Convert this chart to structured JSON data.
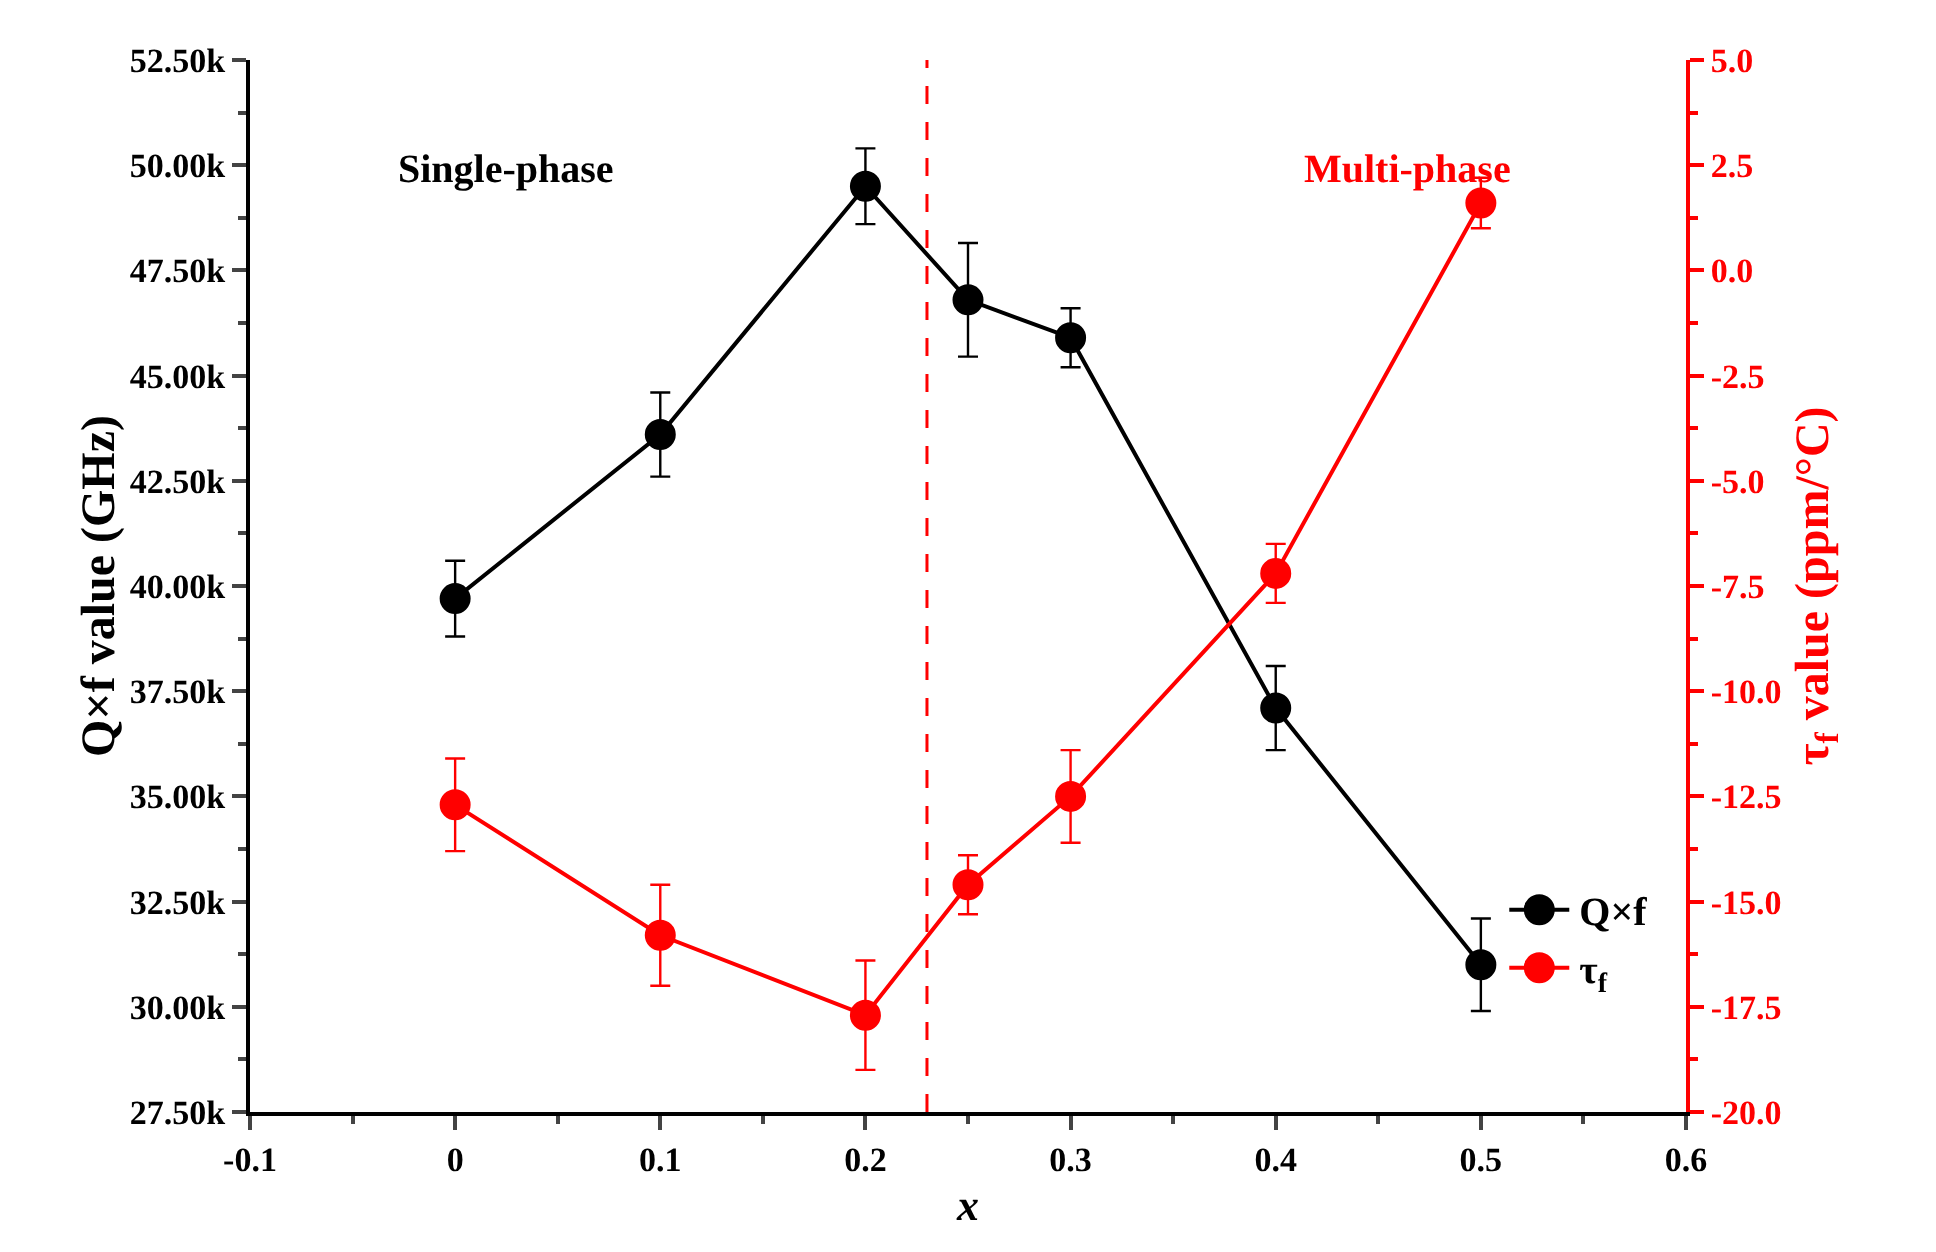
{
  "chart_data": {
    "type": "line",
    "xlabel": "x",
    "ylabel": "Q×f value (GHz)",
    "y2label": "τ$_{f}$ value (ppm/°C)",
    "x": [
      0,
      0.1,
      0.2,
      0.25,
      0.3,
      0.4,
      0.5
    ],
    "series": [
      {
        "name": "Q×f",
        "color": "#000000",
        "values": [
          39700,
          43600,
          49500,
          46800,
          45900,
          37100,
          31000
        ],
        "errors": [
          900,
          1000,
          900,
          1350,
          700,
          1000,
          1100
        ]
      },
      {
        "name": "τ$_{f}$",
        "color": "#ff0000",
        "axis": "y2",
        "values": [
          -12.7,
          -15.8,
          -17.7,
          -14.6,
          -12.5,
          -7.2,
          1.6
        ],
        "errors": [
          1.1,
          1.2,
          1.3,
          0.7,
          1.1,
          0.7,
          0.6
        ]
      }
    ],
    "xlim": [
      -0.1,
      0.6
    ],
    "xticks": [
      -0.1,
      0,
      0.1,
      0.2,
      0.3,
      0.4,
      0.5,
      0.6
    ],
    "ylim": [
      27500,
      52500
    ],
    "yticks": [
      {
        "value": 27500,
        "label": "27.50k"
      },
      {
        "value": 30000,
        "label": "30.00k"
      },
      {
        "value": 32500,
        "label": "32.50k"
      },
      {
        "value": 35000,
        "label": "35.00k"
      },
      {
        "value": 37500,
        "label": "37.50k"
      },
      {
        "value": 40000,
        "label": "40.00k"
      },
      {
        "value": 42500,
        "label": "42.50k"
      },
      {
        "value": 45000,
        "label": "45.00k"
      },
      {
        "value": 47500,
        "label": "47.50k"
      },
      {
        "value": 50000,
        "label": "50.00k"
      },
      {
        "value": 52500,
        "label": "52.50k"
      }
    ],
    "y2lim": [
      -20,
      5
    ],
    "y2ticks": [
      {
        "value": -20,
        "label": "-20.0"
      },
      {
        "value": -17.5,
        "label": "-17.5"
      },
      {
        "value": -15,
        "label": "-15.0"
      },
      {
        "value": -12.5,
        "label": "-12.5"
      },
      {
        "value": -10,
        "label": "-10.0"
      },
      {
        "value": -7.5,
        "label": "-7.5"
      },
      {
        "value": -5,
        "label": "-5.0"
      },
      {
        "value": -2.5,
        "label": "-2.5"
      },
      {
        "value": 0,
        "label": "0.0"
      },
      {
        "value": 2.5,
        "label": "2.5"
      },
      {
        "value": 5,
        "label": "5.0"
      }
    ],
    "ref_lines": [
      {
        "axis": "x",
        "value": 0.23,
        "color": "#ff0000",
        "line_style": "dashed"
      }
    ],
    "annotations": [
      "Single-phase",
      "Multi-phase"
    ],
    "marker": "circle",
    "line_style": "solid",
    "grid": false,
    "legend": "bottom right"
  }
}
